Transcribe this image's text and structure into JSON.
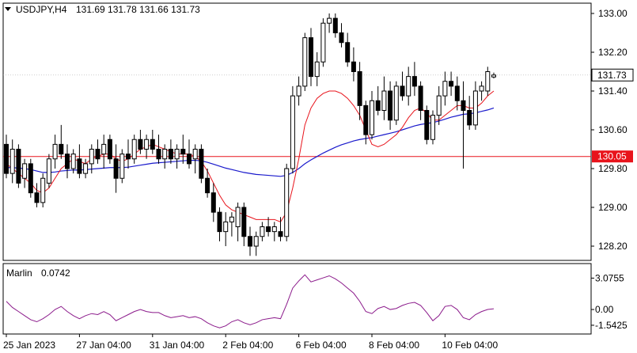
{
  "symbol_header": "USDJPY,H4",
  "ohlc": "131.69 131.78 131.66 131.73",
  "indicator": {
    "name": "Marlin",
    "value": "0.0742"
  },
  "colors": {
    "bull": "#ffffff",
    "bear": "#000000",
    "fast_ma": "#e8141c",
    "slow_ma": "#1a1acc",
    "oscillator": "#8b1a8b",
    "level_line": "#e8141c",
    "price_label_bg": "#ffffff",
    "level_label_bg": "#e8141c"
  },
  "current_price_label": "131.73",
  "level_label": "130.05",
  "chart_data": {
    "type": "candlestick",
    "title": "USDJPY,H4",
    "ylim": [
      127.9,
      133.3
    ],
    "yticks": [
      "133.00",
      "132.20",
      "131.40",
      "130.60",
      "129.80",
      "129.00",
      "128.20"
    ],
    "xticks": [
      "25 Jan 2023",
      "27 Jan 04:00",
      "31 Jan 04:00",
      "2 Feb 04:00",
      "6 Feb 04:00",
      "8 Feb 04:00",
      "10 Feb 04:00"
    ],
    "horizontal_level": 130.05,
    "current_price": 131.73,
    "candles": [
      [
        130.3,
        130.5,
        129.6,
        129.7
      ],
      [
        129.7,
        130.4,
        129.5,
        130.2
      ],
      [
        130.2,
        130.3,
        129.4,
        129.5
      ],
      [
        129.6,
        130.0,
        129.4,
        129.9
      ],
      [
        129.9,
        130.0,
        129.2,
        129.3
      ],
      [
        129.3,
        129.5,
        129.0,
        129.1
      ],
      [
        129.1,
        129.7,
        129.0,
        129.6
      ],
      [
        129.5,
        130.1,
        129.4,
        130.0
      ],
      [
        130.0,
        130.5,
        129.8,
        130.3
      ],
      [
        130.3,
        130.7,
        130.0,
        130.1
      ],
      [
        130.1,
        130.3,
        129.6,
        129.8
      ],
      [
        129.8,
        130.2,
        129.7,
        130.1
      ],
      [
        130.0,
        130.3,
        129.6,
        129.7
      ],
      [
        129.7,
        130.0,
        129.6,
        129.9
      ],
      [
        129.9,
        130.3,
        129.7,
        130.2
      ],
      [
        130.2,
        130.4,
        129.9,
        130.0
      ],
      [
        130.1,
        130.5,
        129.8,
        130.3
      ],
      [
        130.4,
        130.5,
        129.9,
        130.0
      ],
      [
        130.0,
        130.3,
        129.3,
        129.6
      ],
      [
        129.6,
        130.2,
        129.5,
        130.1
      ],
      [
        130.1,
        130.4,
        129.8,
        130.0
      ],
      [
        130.0,
        130.5,
        129.9,
        130.4
      ],
      [
        130.4,
        130.6,
        130.1,
        130.2
      ],
      [
        130.2,
        130.5,
        130.0,
        130.4
      ],
      [
        130.4,
        130.6,
        130.1,
        130.2
      ],
      [
        130.2,
        130.5,
        129.9,
        130.0
      ],
      [
        130.0,
        130.3,
        129.8,
        130.2
      ],
      [
        130.2,
        130.4,
        129.9,
        130.0
      ],
      [
        130.0,
        130.3,
        129.8,
        130.2
      ],
      [
        130.2,
        130.5,
        129.9,
        130.1
      ],
      [
        130.1,
        130.4,
        129.8,
        129.9
      ],
      [
        130.0,
        130.3,
        129.7,
        130.2
      ],
      [
        130.2,
        130.3,
        129.5,
        129.6
      ],
      [
        129.6,
        129.8,
        129.2,
        129.3
      ],
      [
        129.3,
        129.5,
        128.7,
        128.9
      ],
      [
        128.9,
        129.0,
        128.3,
        128.5
      ],
      [
        128.5,
        128.9,
        128.2,
        128.7
      ],
      [
        128.7,
        128.9,
        128.4,
        128.8
      ],
      [
        128.6,
        129.1,
        128.3,
        129.0
      ],
      [
        129.0,
        129.1,
        128.2,
        128.4
      ],
      [
        128.4,
        128.6,
        128.0,
        128.2
      ],
      [
        128.2,
        128.5,
        128.0,
        128.4
      ],
      [
        128.4,
        128.7,
        128.3,
        128.6
      ],
      [
        128.6,
        128.8,
        128.4,
        128.5
      ],
      [
        128.5,
        128.7,
        128.3,
        128.6
      ],
      [
        128.5,
        128.8,
        128.3,
        128.4
      ],
      [
        128.4,
        129.9,
        128.3,
        129.8
      ],
      [
        129.8,
        131.5,
        129.7,
        131.3
      ],
      [
        131.3,
        131.7,
        131.1,
        131.5
      ],
      [
        131.5,
        132.6,
        131.4,
        132.5
      ],
      [
        132.5,
        132.7,
        131.5,
        131.7
      ],
      [
        131.7,
        132.2,
        131.5,
        132.0
      ],
      [
        132.0,
        132.9,
        131.9,
        132.8
      ],
      [
        132.8,
        133.0,
        132.6,
        132.9
      ],
      [
        132.9,
        133.0,
        132.5,
        132.6
      ],
      [
        132.6,
        132.8,
        132.3,
        132.4
      ],
      [
        132.4,
        132.6,
        131.9,
        132.0
      ],
      [
        132.0,
        132.3,
        131.6,
        131.8
      ],
      [
        131.8,
        132.0,
        130.8,
        131.1
      ],
      [
        131.1,
        131.2,
        130.3,
        130.5
      ],
      [
        130.5,
        131.4,
        130.4,
        131.2
      ],
      [
        131.2,
        131.5,
        130.9,
        131.0
      ],
      [
        131.0,
        131.7,
        130.8,
        131.4
      ],
      [
        131.4,
        131.6,
        130.6,
        130.8
      ],
      [
        130.8,
        131.6,
        130.7,
        131.5
      ],
      [
        131.5,
        131.8,
        131.2,
        131.3
      ],
      [
        131.3,
        131.9,
        131.1,
        131.7
      ],
      [
        131.7,
        132.0,
        131.3,
        131.5
      ],
      [
        131.5,
        131.6,
        130.8,
        131.0
      ],
      [
        131.0,
        131.1,
        130.3,
        130.4
      ],
      [
        130.4,
        131.0,
        130.3,
        130.9
      ],
      [
        130.9,
        131.5,
        130.7,
        131.3
      ],
      [
        131.3,
        131.8,
        131.1,
        131.6
      ],
      [
        131.6,
        131.8,
        131.3,
        131.5
      ],
      [
        131.5,
        131.7,
        131.0,
        131.2
      ],
      [
        131.2,
        131.6,
        129.8,
        131.0
      ],
      [
        131.0,
        131.3,
        130.6,
        130.7
      ],
      [
        130.7,
        131.6,
        130.6,
        131.4
      ],
      [
        131.4,
        131.6,
        131.2,
        131.5
      ],
      [
        131.4,
        131.9,
        131.3,
        131.8
      ],
      [
        131.69,
        131.78,
        131.66,
        131.73
      ]
    ],
    "fast_ma": [
      129.9,
      129.8,
      129.7,
      129.6,
      129.5,
      129.35,
      129.3,
      129.4,
      129.6,
      129.8,
      129.9,
      130.0,
      129.95,
      129.9,
      130.0,
      130.05,
      130.1,
      130.1,
      130.0,
      129.95,
      130.0,
      130.1,
      130.2,
      130.25,
      130.3,
      130.25,
      130.2,
      130.15,
      130.1,
      130.1,
      130.1,
      130.05,
      129.95,
      129.75,
      129.5,
      129.25,
      129.05,
      128.95,
      128.9,
      128.85,
      128.8,
      128.75,
      128.75,
      128.75,
      128.75,
      128.7,
      128.9,
      129.4,
      130.0,
      130.7,
      131.05,
      131.25,
      131.35,
      131.4,
      131.4,
      131.35,
      131.25,
      131.1,
      130.9,
      130.6,
      130.3,
      130.25,
      130.3,
      130.4,
      130.5,
      130.65,
      130.85,
      131.0,
      131.05,
      130.95,
      130.8,
      130.8,
      130.9,
      131.0,
      131.1,
      131.1,
      131.05,
      131.05,
      131.15,
      131.3,
      131.4
    ],
    "slow_ma": [
      129.82,
      129.82,
      129.81,
      129.8,
      129.78,
      129.75,
      129.72,
      129.72,
      129.73,
      129.75,
      129.76,
      129.77,
      129.77,
      129.78,
      129.79,
      129.8,
      129.81,
      129.82,
      129.82,
      129.82,
      129.83,
      129.85,
      129.87,
      129.89,
      129.91,
      129.92,
      129.93,
      129.94,
      129.95,
      129.96,
      129.97,
      129.97,
      129.96,
      129.93,
      129.89,
      129.85,
      129.81,
      129.78,
      129.75,
      129.72,
      129.7,
      129.68,
      129.67,
      129.66,
      129.65,
      129.64,
      129.66,
      129.72,
      129.8,
      129.9,
      129.98,
      130.05,
      130.12,
      130.18,
      130.24,
      130.29,
      130.33,
      130.37,
      130.4,
      130.42,
      130.44,
      130.47,
      130.5,
      130.53,
      130.56,
      130.6,
      130.64,
      130.68,
      130.71,
      130.73,
      130.75,
      130.78,
      130.82,
      130.86,
      130.89,
      130.92,
      130.93,
      130.95,
      130.98,
      131.01,
      131.05
    ],
    "oscillator": {
      "name": "Marlin",
      "levels": [
        "3.0755",
        "0.00",
        "-1.5425"
      ],
      "ylim": [
        -2.4,
        4.5
      ],
      "values": [
        0.8,
        0.2,
        -0.2,
        -0.6,
        -1.0,
        -1.2,
        -0.9,
        -0.5,
        0.0,
        0.3,
        -0.2,
        -0.6,
        -0.9,
        -0.6,
        -0.4,
        -0.5,
        -0.2,
        -0.5,
        -1.1,
        -0.8,
        -0.5,
        -0.2,
        0.0,
        -0.2,
        -0.3,
        -0.3,
        -0.6,
        -0.8,
        -0.7,
        -0.6,
        -0.8,
        -0.7,
        -0.9,
        -1.3,
        -1.6,
        -1.8,
        -1.6,
        -1.2,
        -1.0,
        -1.3,
        -1.5,
        -1.3,
        -1.0,
        -0.9,
        -0.8,
        -0.9,
        0.5,
        2.1,
        2.8,
        3.4,
        2.7,
        2.9,
        3.1,
        3.3,
        3.0,
        2.6,
        2.1,
        1.6,
        0.8,
        -0.2,
        -0.4,
        0.1,
        0.3,
        0.0,
        0.1,
        0.4,
        0.6,
        0.7,
        0.4,
        -0.3,
        -1.1,
        -0.6,
        0.3,
        0.4,
        0.0,
        -0.8,
        -1.0,
        -0.5,
        -0.2,
        0.0,
        0.07
      ]
    }
  }
}
